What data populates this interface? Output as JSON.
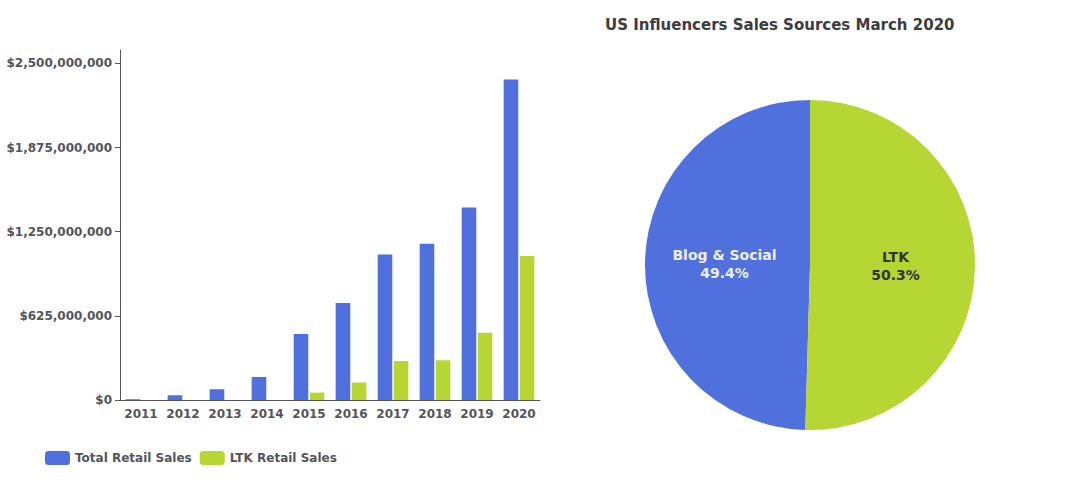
{
  "chart_data": [
    {
      "type": "bar",
      "categories": [
        "2011",
        "2012",
        "2013",
        "2014",
        "2015",
        "2016",
        "2017",
        "2018",
        "2019",
        "2020"
      ],
      "series": [
        {
          "name": "Total Retail Sales",
          "values": [
            5000000,
            35000000,
            80000000,
            170000000,
            490000000,
            720000000,
            1080000000,
            1160000000,
            1430000000,
            2380000000
          ]
        },
        {
          "name": "LTK Retail Sales",
          "values": [
            0,
            0,
            0,
            0,
            55000000,
            130000000,
            290000000,
            295000000,
            500000000,
            1070000000
          ]
        }
      ],
      "ylim": [
        0,
        2600000000
      ],
      "yticks": [
        {
          "value": 0,
          "label": "$0"
        },
        {
          "value": 625000000,
          "label": "$625,000,000"
        },
        {
          "value": 1250000000,
          "label": "$1,250,000,000"
        },
        {
          "value": 1875000000,
          "label": "$1,875,000,000"
        },
        {
          "value": 2500000000,
          "label": "$2,500,000,000"
        }
      ],
      "grid": false,
      "legend": "lower left"
    },
    {
      "type": "pie",
      "title": "US Influencers Sales Sources March 2020",
      "values": [
        49.4,
        50.3
      ],
      "value_labels": [
        "Blog & Social\n49.4%",
        "LTK\n50.3%"
      ],
      "data_labels": true
    }
  ]
}
